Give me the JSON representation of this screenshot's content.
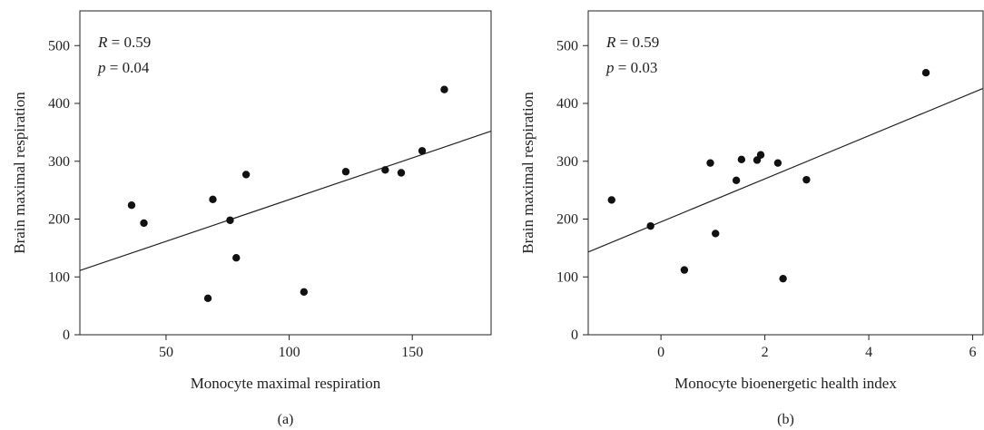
{
  "chart_data": [
    {
      "type": "scatter",
      "panel_label": "(a)",
      "xlabel": "Monocyte maximal respiration",
      "ylabel": "Brain maximal respiration",
      "xlim": [
        15,
        182
      ],
      "ylim": [
        0,
        560
      ],
      "xticks": [
        50,
        100,
        150
      ],
      "yticks": [
        0,
        100,
        200,
        300,
        400,
        500
      ],
      "annotation": {
        "r_symbol": "R",
        "r_text": " = 0.59",
        "p_symbol": "p",
        "p_text": " = 0.04"
      },
      "x": [
        36,
        41,
        67,
        69,
        76,
        78.5,
        82.5,
        106,
        123,
        139,
        145.5,
        154,
        163
      ],
      "y": [
        224,
        193,
        63,
        234,
        198,
        133,
        277,
        74,
        282,
        285,
        280,
        318,
        424
      ],
      "fit_line": {
        "x": [
          15,
          182
        ],
        "y": [
          111,
          352
        ]
      }
    },
    {
      "type": "scatter",
      "panel_label": "(b)",
      "xlabel": "Monocyte bioenergetic health index",
      "ylabel": "Brain maximal respiration",
      "xlim": [
        -1.4,
        6.2
      ],
      "ylim": [
        0,
        560
      ],
      "xticks": [
        0,
        2,
        4,
        6
      ],
      "yticks": [
        0,
        100,
        200,
        300,
        400,
        500
      ],
      "annotation": {
        "r_symbol": "R",
        "r_text": " = 0.59",
        "p_symbol": "p",
        "p_text": " = 0.03"
      },
      "x": [
        -0.95,
        -0.2,
        0.45,
        0.95,
        1.05,
        1.45,
        1.55,
        1.85,
        1.92,
        2.25,
        2.35,
        2.8,
        5.1
      ],
      "y": [
        233,
        188,
        112,
        297,
        175,
        267,
        303,
        302,
        311,
        297,
        97,
        268,
        453
      ],
      "fit_line": {
        "x": [
          -1.4,
          6.2
        ],
        "y": [
          143,
          426
        ]
      }
    }
  ]
}
